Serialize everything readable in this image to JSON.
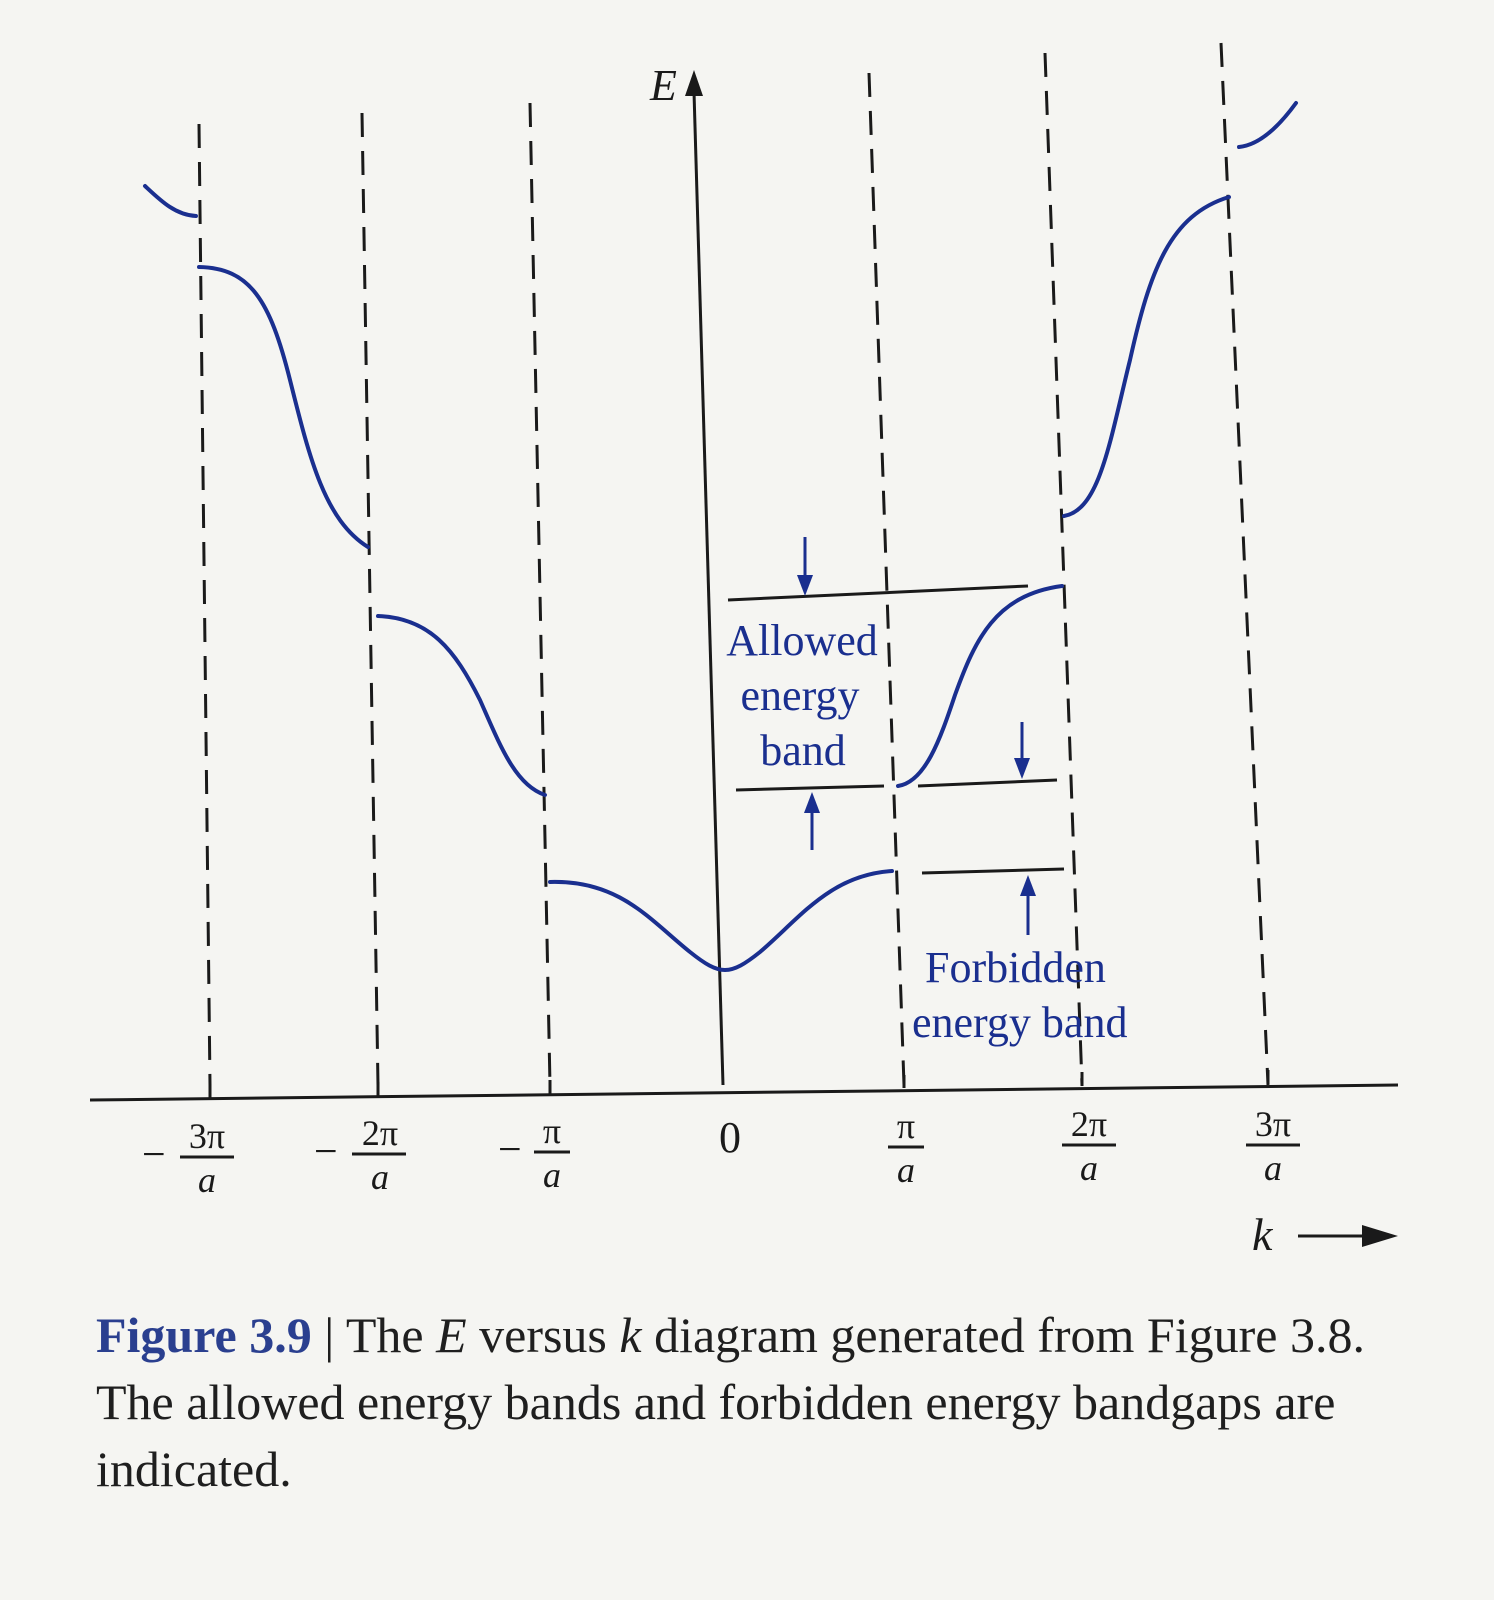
{
  "figure": {
    "y_axis_label": "E",
    "x_axis_label": "k",
    "x_ticks": [
      {
        "num": "3π",
        "den": "a",
        "sign": "−"
      },
      {
        "num": "2π",
        "den": "a",
        "sign": "−"
      },
      {
        "num": "π",
        "den": "a",
        "sign": "−"
      },
      {
        "num": "0",
        "den": "",
        "sign": ""
      },
      {
        "num": "π",
        "den": "a",
        "sign": ""
      },
      {
        "num": "2π",
        "den": "a",
        "sign": ""
      },
      {
        "num": "3π",
        "den": "a",
        "sign": ""
      }
    ],
    "annotations": {
      "allowed_line1": "Allowed",
      "allowed_line2": "energy",
      "allowed_line3": "band",
      "forbidden_line1": "Forbidden",
      "forbidden_line2": "energy band"
    },
    "colors": {
      "curve": "#1a2f8f",
      "annotation": "#1a2f8f",
      "axis": "#1a1a1a"
    }
  },
  "caption": {
    "label": "Figure 3.9",
    "separator": " | ",
    "part1": "The ",
    "E": "E",
    "part2": " versus ",
    "k": "k",
    "part3": " diagram generated from Figure 3.8. The allowed energy bands and forbidden energy bandgaps are indicated."
  }
}
